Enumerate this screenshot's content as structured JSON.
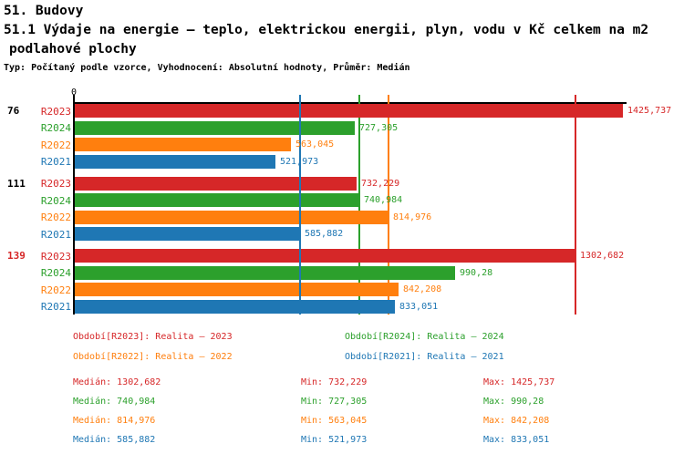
{
  "header": {
    "title_line1": "51. Budovy",
    "title_line2": "51.1 Výdaje na energie – teplo, elektrickou energii, plyn, vodu v Kč celkem na m2",
    "title_line3": "podlahové plochy",
    "meta_line": "Typ: Počítaný podle vzorce, Vyhodnocení: Absolutní hodnoty, Průměr: Medián"
  },
  "series_colors": {
    "R2023": "#d62728",
    "R2024": "#2ca02c",
    "R2022": "#ff7f0e",
    "R2021": "#1f77b4"
  },
  "chart_data": {
    "type": "bar",
    "orientation": "horizontal",
    "x_axis": {
      "zero_label": "0",
      "min": 0,
      "max": 1435
    },
    "legend_position": "bottom",
    "grid": "median-lines-only",
    "categories": [
      "76",
      "111",
      "139"
    ],
    "series_order": [
      "R2023",
      "R2024",
      "R2022",
      "R2021"
    ],
    "groups": [
      {
        "label": "76",
        "label_color": "#000000",
        "bars": [
          {
            "series": "R2023",
            "value": 1425.737,
            "display": "1425,737"
          },
          {
            "series": "R2024",
            "value": 727.305,
            "display": "727,305"
          },
          {
            "series": "R2022",
            "value": 563.045,
            "display": "563,045"
          },
          {
            "series": "R2021",
            "value": 521.973,
            "display": "521,973"
          }
        ]
      },
      {
        "label": "111",
        "label_color": "#000000",
        "bars": [
          {
            "series": "R2023",
            "value": 732.229,
            "display": "732,229"
          },
          {
            "series": "R2024",
            "value": 740.984,
            "display": "740,984"
          },
          {
            "series": "R2022",
            "value": 814.976,
            "display": "814,976"
          },
          {
            "series": "R2021",
            "value": 585.882,
            "display": "585,882"
          }
        ]
      },
      {
        "label": "139",
        "label_color": "#d62728",
        "bars": [
          {
            "series": "R2023",
            "value": 1302.682,
            "display": "1302,682"
          },
          {
            "series": "R2024",
            "value": 990.28,
            "display": "990,28"
          },
          {
            "series": "R2022",
            "value": 842.208,
            "display": "842,208"
          },
          {
            "series": "R2021",
            "value": 833.051,
            "display": "833,051"
          }
        ]
      }
    ],
    "median_lines": [
      {
        "series": "R2023",
        "value": 1302.682
      },
      {
        "series": "R2024",
        "value": 740.984
      },
      {
        "series": "R2022",
        "value": 814.976
      },
      {
        "series": "R2021",
        "value": 585.882
      }
    ]
  },
  "legend": {
    "items": [
      {
        "series": "R2023",
        "label": "Období[R2023]: Realita – 2023"
      },
      {
        "series": "R2024",
        "label": "Období[R2024]: Realita – 2024"
      },
      {
        "series": "R2022",
        "label": "Období[R2022]: Realita – 2022"
      },
      {
        "series": "R2021",
        "label": "Období[R2021]: Realita – 2021"
      }
    ]
  },
  "stats": {
    "rows": [
      {
        "series": "R2023",
        "median": "Medián: 1302,682",
        "min": "Min: 732,229",
        "max": "Max: 1425,737"
      },
      {
        "series": "R2024",
        "median": "Medián: 740,984",
        "min": "Min: 727,305",
        "max": "Max: 990,28"
      },
      {
        "series": "R2022",
        "median": "Medián: 814,976",
        "min": "Min: 563,045",
        "max": "Max: 842,208"
      },
      {
        "series": "R2021",
        "median": "Medián: 585,882",
        "min": "Min: 521,973",
        "max": "Max: 833,051"
      }
    ]
  }
}
